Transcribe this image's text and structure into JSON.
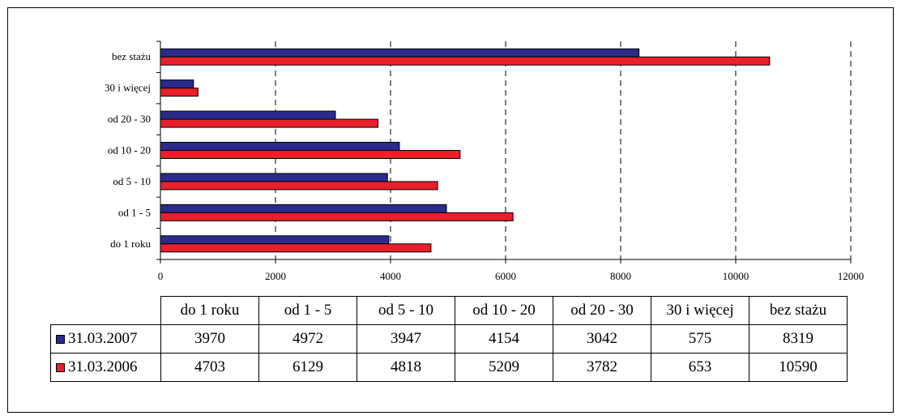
{
  "chart_data": {
    "type": "bar",
    "orientation": "horizontal",
    "categories": [
      "do 1 roku",
      "od 1 - 5",
      "od 5 - 10",
      "od 10 - 20",
      "od 20 - 30",
      "30 i więcej",
      "bez stażu"
    ],
    "series": [
      {
        "name": "31.03.2007",
        "color": "#2b2b8c",
        "values": [
          3970,
          4972,
          3947,
          4154,
          3042,
          575,
          8319
        ]
      },
      {
        "name": "31.03.2006",
        "color": "#e8202a",
        "values": [
          4703,
          6129,
          4818,
          5209,
          3782,
          653,
          10590
        ]
      }
    ],
    "xlim": [
      0,
      12000
    ],
    "xticks": [
      "0",
      "2000",
      "4000",
      "6000",
      "8000",
      "10000",
      "12000"
    ],
    "grid": "vertical dashed",
    "legend": "data table below chart"
  }
}
